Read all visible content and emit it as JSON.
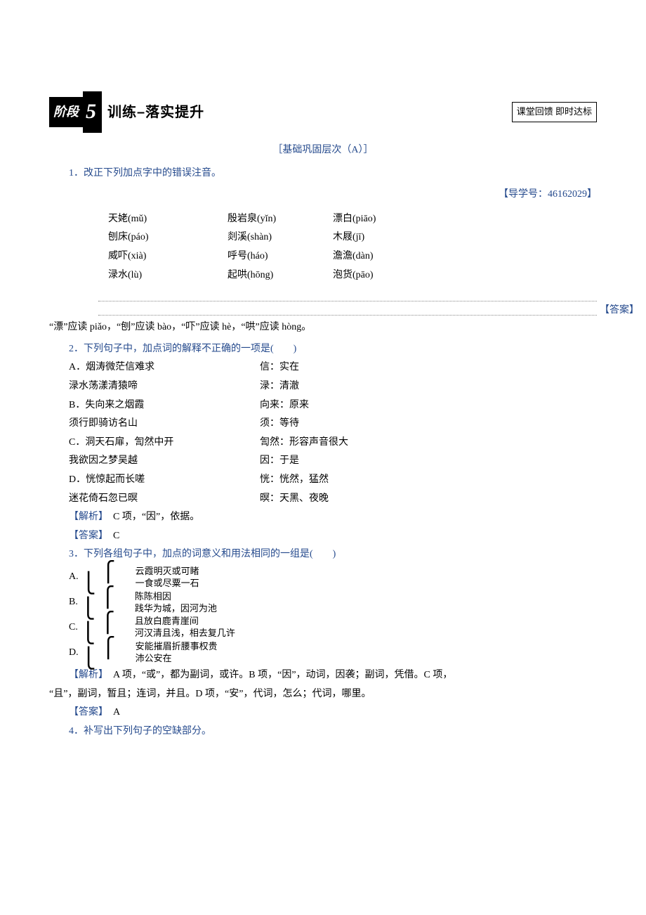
{
  "header": {
    "stage_label": "阶段",
    "stage_num": "5",
    "title": "训练–落实提升",
    "right_box": "课堂回馈 即时达标"
  },
  "section_title": "［基础巩固层次（A）］",
  "q1": {
    "text": "1．改正下列加点字中的错误注音。",
    "guide": "【导学号：46162029】",
    "rows": [
      {
        "c1": "天姥(mǔ)",
        "c2": "殷岩泉(yǐn)",
        "c3": "漂白(piāo)"
      },
      {
        "c1": "刨床(páo)",
        "c2": "剡溪(shàn)",
        "c3": "木屐(jī)"
      },
      {
        "c1": "威吓(xià)",
        "c2": "呼号(háo)",
        "c3": "澹澹(dàn)"
      },
      {
        "c1": "渌水(lù)",
        "c2": "起哄(hōng)",
        "c3": "泡货(pāo)"
      }
    ],
    "answer_label": "【答案】",
    "answer": "“漂”应读 piǎo，“刨”应读 bào，“吓”应读 hè，“哄”应读 hòng。"
  },
  "q2": {
    "text": "2．下列句子中，加点词的解释不正确的一项是(　　)",
    "options": [
      {
        "left": "A．烟涛微茫信难求",
        "right": "信：实在"
      },
      {
        "left": "渌水荡漾清猿啼",
        "right": "渌：清澈"
      },
      {
        "left": "B．失向来之烟霞",
        "right": "向来：原来"
      },
      {
        "left": "须行即骑访名山",
        "right": "须：等待"
      },
      {
        "left": "C．洞天石扉，訇然中开",
        "right": "訇然：形容声音很大"
      },
      {
        "left": "我欲因之梦吴越",
        "right": "因：于是"
      },
      {
        "left": "D．恍惊起而长嗟",
        "right": "恍：恍然，猛然"
      },
      {
        "left": "迷花倚石忽已暝",
        "right": "暝：天黑、夜晚"
      }
    ],
    "analysis_label": "【解析】",
    "analysis": "　C 项，“因”，依据。",
    "answer_label": "【答案】",
    "answer": "　C"
  },
  "q3": {
    "text": "3．下列各组句子中，加点的词意义和用法相同的一组是(　　)",
    "options": [
      {
        "letter": "A.",
        "l1": "云霞明灭或可睹",
        "l2": "一食或尽粟一石"
      },
      {
        "letter": "B.",
        "l1": "陈陈相因",
        "l2": "践华为城，因河为池"
      },
      {
        "letter": "C.",
        "l1": "且放白鹿青崖间",
        "l2": "河汉清且浅，相去复几许"
      },
      {
        "letter": "D.",
        "l1": "安能摧眉折腰事权贵",
        "l2": "沛公安在"
      }
    ],
    "analysis_label": "【解析】",
    "analysis_line1": "　A 项，“或”，都为副词，或许。B 项，“因”，动词，因袭；副词，凭借。C 项，",
    "analysis_line2": "“且”，副词，暂且；连词，并且。D 项，“安”，代词，怎么；代词，哪里。",
    "answer_label": "【答案】",
    "answer": "　A"
  },
  "q4": {
    "text": "4．补写出下列句子的空缺部分。"
  },
  "colors": {
    "blue": "#254a8d",
    "black": "#000000",
    "bg": "#ffffff"
  }
}
